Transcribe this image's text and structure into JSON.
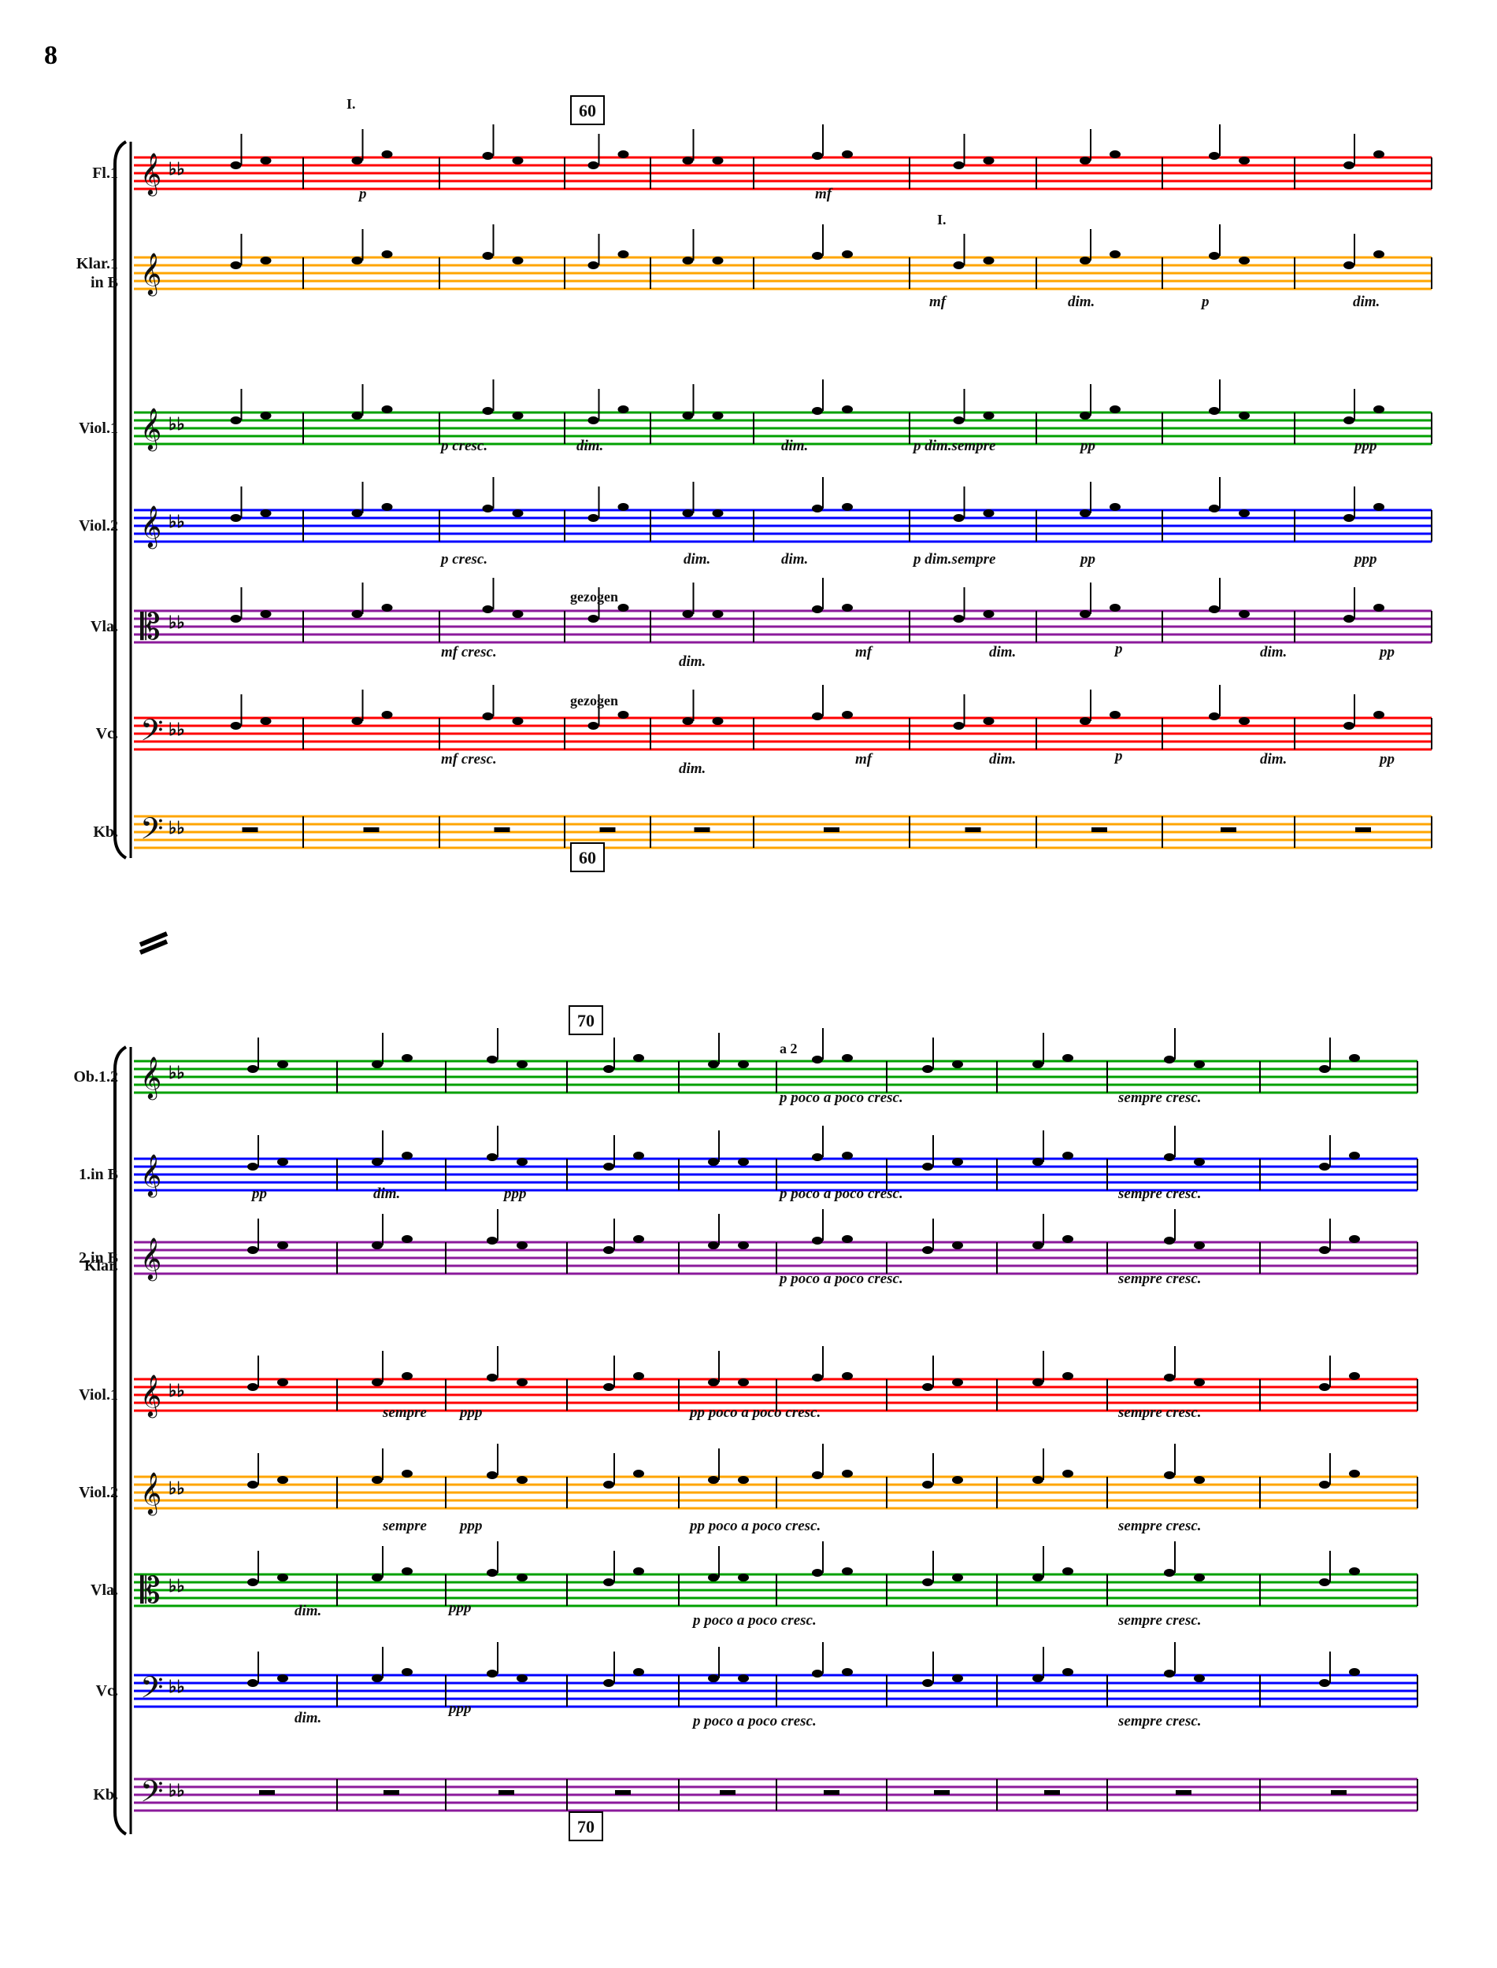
{
  "page": {
    "number": "8"
  },
  "colors": {
    "red": "#ff0000",
    "orange": "#ffa500",
    "green": "#00a000",
    "blue": "#0000ff",
    "purple": "#8b1a9b"
  },
  "system_divider_icon": "double-slash-icon",
  "systems": [
    {
      "rehearsal_mark": "60",
      "staves": [
        {
          "label": "Fl.1",
          "color": "red",
          "annotations": [
            "I.",
            "p",
            "mf"
          ]
        },
        {
          "label": "Klar.1\nin B",
          "color": "orange",
          "annotations": [
            "I.",
            "mf",
            "dim.",
            "p",
            "dim."
          ]
        },
        {
          "label": "Viol.1",
          "color": "green",
          "annotations": [
            "p cresc.",
            "dim.",
            "dim.",
            "p dim.sempre",
            "pp",
            "ppp"
          ]
        },
        {
          "label": "Viol.2",
          "color": "blue",
          "annotations": [
            "p cresc.",
            "dim.",
            "dim.",
            "p dim.sempre",
            "pp",
            "ppp"
          ]
        },
        {
          "label": "Vla.",
          "color": "purple",
          "annotations": [
            "gezogen",
            "mf cresc.",
            "dim.",
            "mf",
            "dim.",
            "p",
            "dim.",
            "pp"
          ]
        },
        {
          "label": "Vc.",
          "color": "red",
          "annotations": [
            "gezogen",
            "mf cresc.",
            "dim.",
            "mf",
            "dim.",
            "p",
            "dim.",
            "pp"
          ]
        },
        {
          "label": "Kb.",
          "color": "orange",
          "annotations": []
        }
      ]
    },
    {
      "rehearsal_mark": "70",
      "staves": [
        {
          "label": "Ob.1.2",
          "color": "green",
          "annotations": [
            "a 2",
            "p poco a poco cresc.",
            "sempre cresc."
          ]
        },
        {
          "label": "1.in B",
          "color": "blue",
          "annotations": [
            "pp",
            "dim.",
            "ppp",
            "p poco a poco cresc.",
            "sempre cresc."
          ]
        },
        {
          "label": "Klar.",
          "color": "none",
          "annotations": []
        },
        {
          "label": "2.in B",
          "color": "purple",
          "annotations": [
            "p poco a poco cresc.",
            "sempre cresc."
          ]
        },
        {
          "label": "Viol.1",
          "color": "red",
          "annotations": [
            "sempre",
            "ppp",
            "pp poco a poco cresc.",
            "sempre cresc."
          ]
        },
        {
          "label": "Viol.2",
          "color": "orange",
          "annotations": [
            "sempre",
            "ppp",
            "pp poco a poco cresc.",
            "sempre cresc."
          ]
        },
        {
          "label": "Vla.",
          "color": "green",
          "annotations": [
            "dim.",
            "ppp",
            "p poco a poco cresc.",
            "sempre cresc."
          ]
        },
        {
          "label": "Vc.",
          "color": "blue",
          "annotations": [
            "dim.",
            "ppp",
            "p poco a poco cresc.",
            "sempre cresc."
          ]
        },
        {
          "label": "Kb.",
          "color": "purple",
          "annotations": []
        }
      ]
    }
  ]
}
